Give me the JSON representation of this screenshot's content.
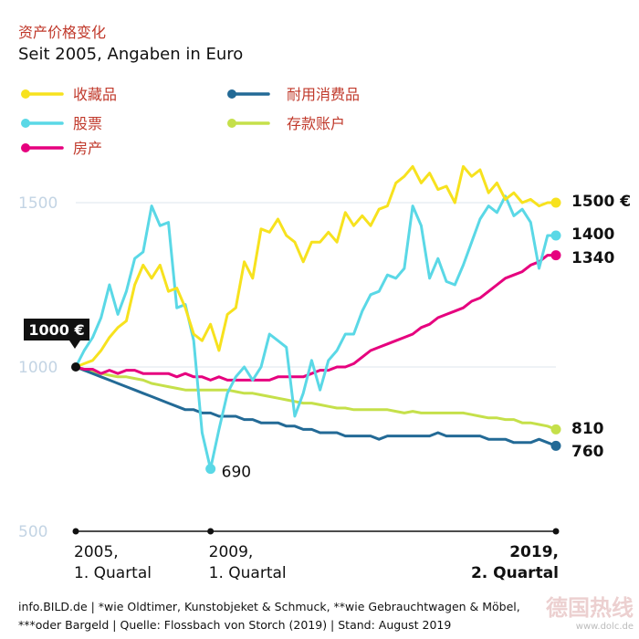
{
  "title": "资产价格变化",
  "subtitle": "Seit 2005, Angaben in Euro",
  "footer": {
    "line1": "info.BILD.de | *wie Oldtimer, Kunstobjeket & Schmuck, **wie Gebrauchtwagen & Möbel,",
    "line2": "***oder Bargeld | Quelle: Flossbach von Storch (2019) | Stand: August 2019"
  },
  "watermark": "德国热线",
  "watermark_sub": "www.dolc.de",
  "start_label": "1000 €",
  "min_label": "690",
  "colors": {
    "collectibles": "#f7e21e",
    "stocks": "#5ad8e6",
    "real_estate": "#e6007e",
    "durables": "#236a96",
    "savings": "#c5e04a",
    "grid": "#dde6ee",
    "tick": "#c3d4e4",
    "title": "#c0392b"
  },
  "chart_data": {
    "type": "line",
    "ylim": [
      500,
      1600
    ],
    "yticks": [
      500,
      1000,
      1500
    ],
    "xticks": [
      {
        "label": [
          "2005,",
          "1. Quartal"
        ],
        "x": 0
      },
      {
        "label": [
          "2009,",
          "1. Quartal"
        ],
        "x": 16
      },
      {
        "label": [
          "2019,",
          "2. Quartal"
        ],
        "x": 57
      }
    ],
    "series": [
      {
        "key": "collectibles",
        "name": "收藏品",
        "end_label": "1500 €",
        "values": [
          1000,
          1010,
          1020,
          1050,
          1090,
          1120,
          1140,
          1250,
          1310,
          1270,
          1310,
          1230,
          1240,
          1180,
          1100,
          1080,
          1130,
          1050,
          1160,
          1180,
          1320,
          1270,
          1420,
          1410,
          1450,
          1400,
          1380,
          1320,
          1380,
          1380,
          1410,
          1380,
          1470,
          1430,
          1460,
          1430,
          1480,
          1490,
          1560,
          1580,
          1610,
          1560,
          1590,
          1540,
          1550,
          1500,
          1610,
          1580,
          1600,
          1530,
          1560,
          1510,
          1530,
          1500,
          1510,
          1490,
          1500,
          1500
        ]
      },
      {
        "key": "stocks",
        "name": "股票",
        "end_label": "1400",
        "values": [
          1000,
          1050,
          1090,
          1150,
          1250,
          1160,
          1230,
          1330,
          1350,
          1490,
          1430,
          1440,
          1180,
          1190,
          1080,
          800,
          690,
          810,
          920,
          970,
          1000,
          960,
          1000,
          1100,
          1080,
          1060,
          850,
          920,
          1020,
          930,
          1020,
          1050,
          1100,
          1100,
          1170,
          1220,
          1230,
          1280,
          1270,
          1300,
          1490,
          1430,
          1270,
          1330,
          1260,
          1250,
          1310,
          1380,
          1450,
          1490,
          1470,
          1520,
          1460,
          1480,
          1440,
          1300,
          1400,
          1400
        ]
      },
      {
        "key": "real_estate",
        "name": "房产",
        "end_label": "1340",
        "values": [
          1000,
          993,
          993,
          980,
          990,
          980,
          990,
          990,
          980,
          980,
          980,
          980,
          970,
          980,
          970,
          970,
          960,
          970,
          960,
          960,
          960,
          960,
          960,
          960,
          970,
          970,
          970,
          970,
          980,
          990,
          990,
          1000,
          1000,
          1010,
          1030,
          1050,
          1060,
          1070,
          1080,
          1090,
          1100,
          1120,
          1130,
          1150,
          1160,
          1170,
          1180,
          1200,
          1210,
          1230,
          1250,
          1270,
          1280,
          1290,
          1310,
          1320,
          1340,
          1340
        ]
      },
      {
        "key": "durables",
        "name": "耐用消费品",
        "end_label": "760",
        "values": [
          1000,
          990,
          980,
          970,
          960,
          950,
          940,
          930,
          920,
          910,
          900,
          890,
          880,
          870,
          870,
          860,
          860,
          850,
          850,
          850,
          840,
          840,
          830,
          830,
          830,
          820,
          820,
          810,
          810,
          800,
          800,
          800,
          790,
          790,
          790,
          790,
          780,
          790,
          790,
          790,
          790,
          790,
          790,
          800,
          790,
          790,
          790,
          790,
          790,
          780,
          780,
          780,
          770,
          770,
          770,
          780,
          770,
          760
        ]
      },
      {
        "key": "savings",
        "name": "存款账户",
        "end_label": "810",
        "values": [
          1000,
          990,
          985,
          980,
          975,
          970,
          970,
          965,
          960,
          950,
          945,
          940,
          935,
          930,
          930,
          930,
          930,
          930,
          930,
          925,
          920,
          920,
          915,
          910,
          905,
          900,
          895,
          890,
          890,
          885,
          880,
          875,
          875,
          870,
          870,
          870,
          870,
          870,
          865,
          860,
          865,
          860,
          860,
          860,
          860,
          860,
          860,
          855,
          850,
          845,
          845,
          840,
          840,
          830,
          830,
          825,
          820,
          810
        ]
      }
    ],
    "legend": [
      {
        "key": "collectibles",
        "label": "收藏品"
      },
      {
        "key": "durables",
        "label": "耐用消费品"
      },
      {
        "key": "stocks",
        "label": "股票"
      },
      {
        "key": "savings",
        "label": "存款账户"
      },
      {
        "key": "real_estate",
        "label": "房产"
      }
    ]
  }
}
